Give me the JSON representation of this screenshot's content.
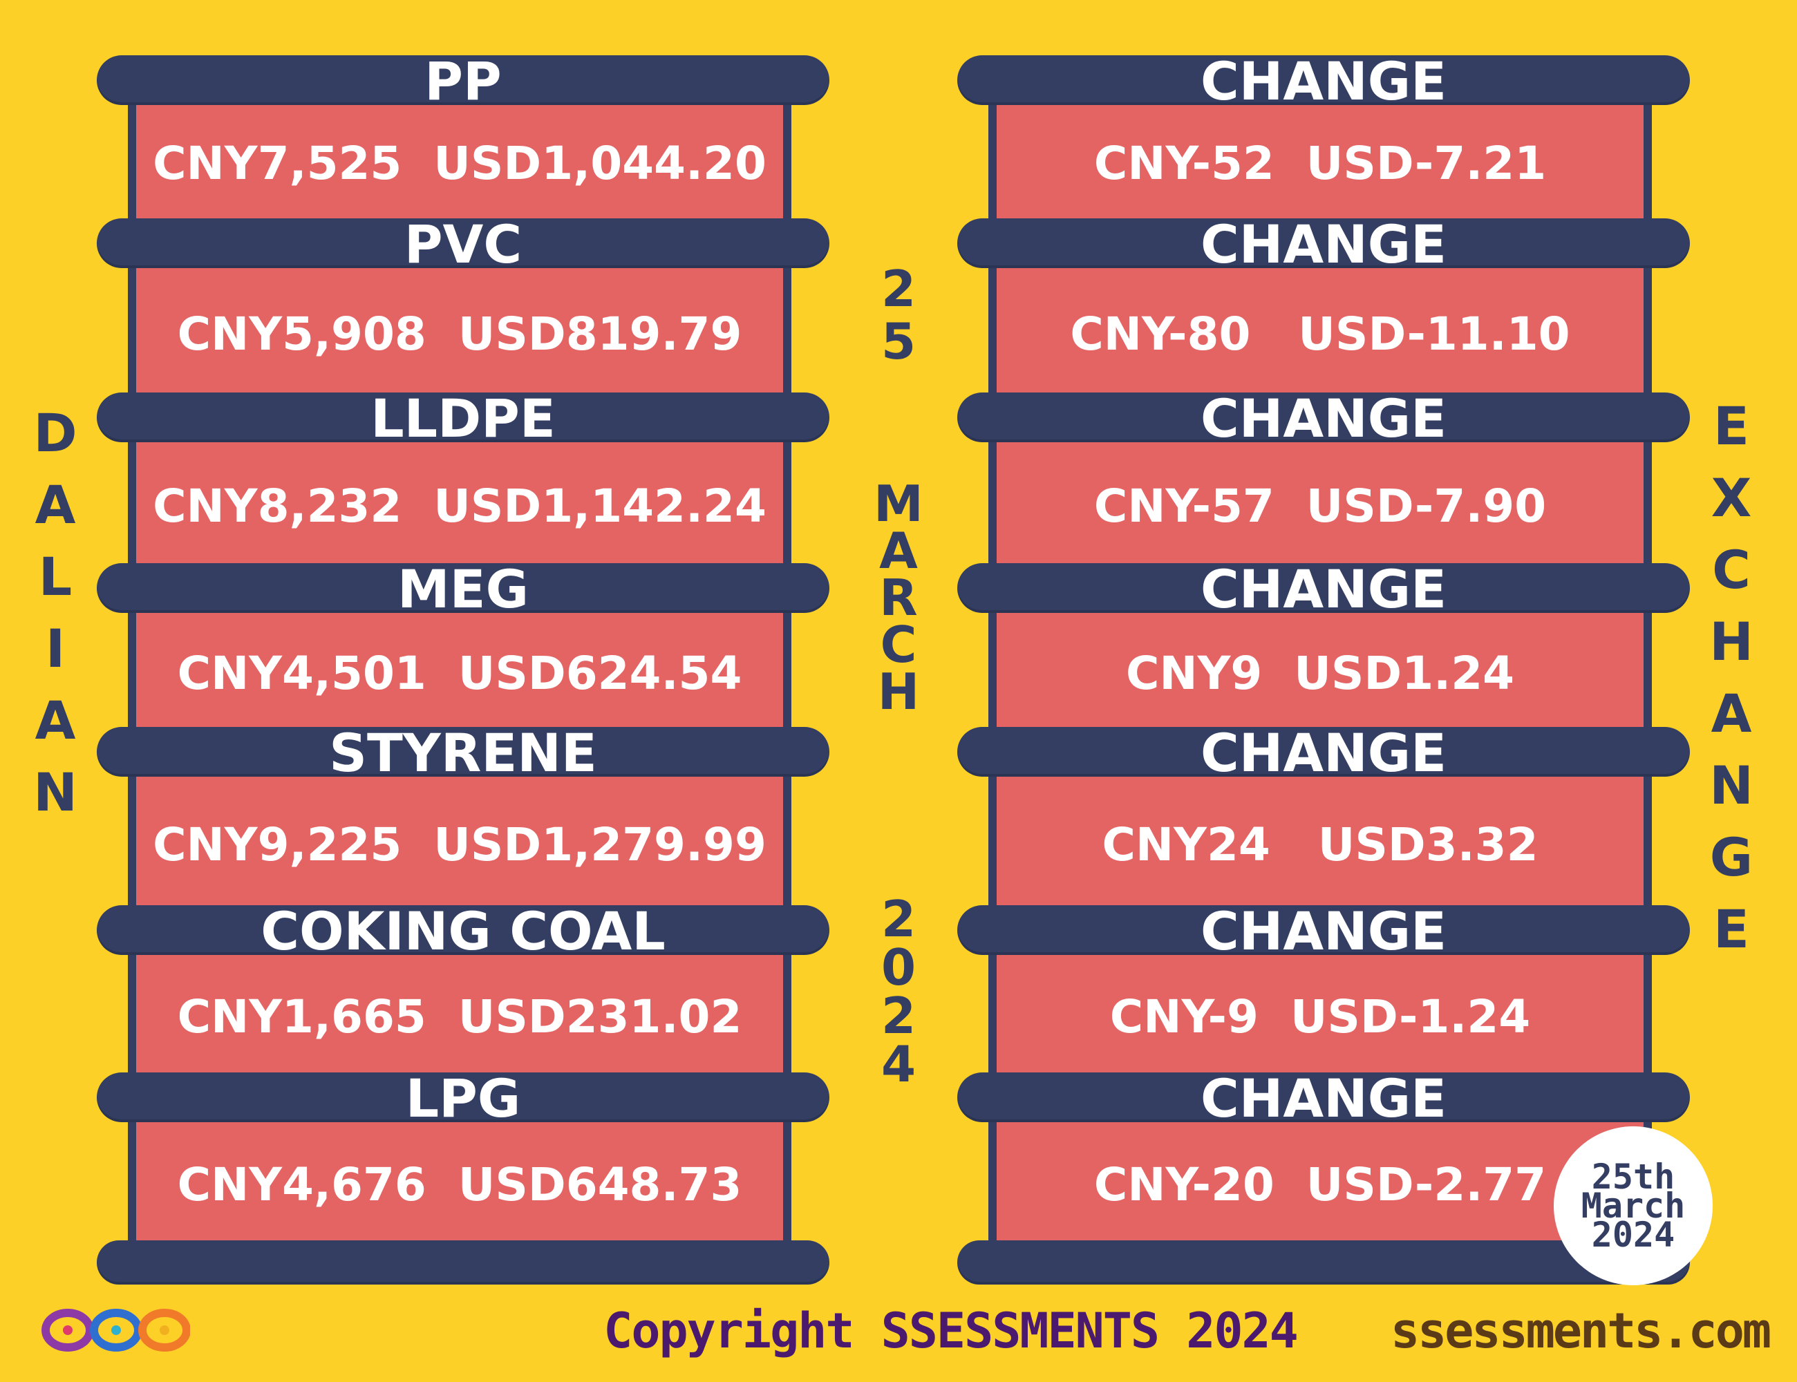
{
  "left_title": [
    "D",
    "A",
    "L",
    "I",
    "A",
    "N"
  ],
  "right_title": [
    "E",
    "X",
    "C",
    "H",
    "A",
    "N",
    "G",
    "E"
  ],
  "date_vertical": {
    "day": [
      "2",
      "5"
    ],
    "month": [
      "M",
      "A",
      "R",
      "C",
      "H"
    ],
    "year": [
      "2",
      "0",
      "2",
      "4"
    ]
  },
  "products": [
    {
      "name": "PP",
      "price": "CNY7,525  USD1,044.20",
      "change_label": "CHANGE",
      "change": "CNY-52  USD-7.21"
    },
    {
      "name": "PVC",
      "price": "CNY5,908  USD819.79",
      "change_label": "CHANGE",
      "change": "CNY-80   USD-11.10"
    },
    {
      "name": "LLDPE",
      "price": "CNY8,232  USD1,142.24",
      "change_label": "CHANGE",
      "change": "CNY-57  USD-7.90"
    },
    {
      "name": "MEG",
      "price": "CNY4,501  USD624.54",
      "change_label": "CHANGE",
      "change": "CNY9  USD1.24"
    },
    {
      "name": "STYRENE",
      "price": "CNY9,225  USD1,279.99",
      "change_label": "CHANGE",
      "change": "CNY24   USD3.32"
    },
    {
      "name": "COKING COAL",
      "price": "CNY1,665  USD231.02",
      "change_label": "CHANGE",
      "change": "CNY-9  USD-1.24"
    },
    {
      "name": "LPG",
      "price": "CNY4,676  USD648.73",
      "change_label": "CHANGE",
      "change": "CNY-20  USD-2.77"
    }
  ],
  "date_stamp": [
    "25th",
    "March",
    "2024"
  ],
  "footer": {
    "copyright": "Copyright SSESSMENTS 2024",
    "website": "ssessments.com"
  },
  "colors": {
    "background": "#fdd027",
    "band": "#333e62",
    "panel": "#e36463",
    "text_white": "#ffffff"
  }
}
